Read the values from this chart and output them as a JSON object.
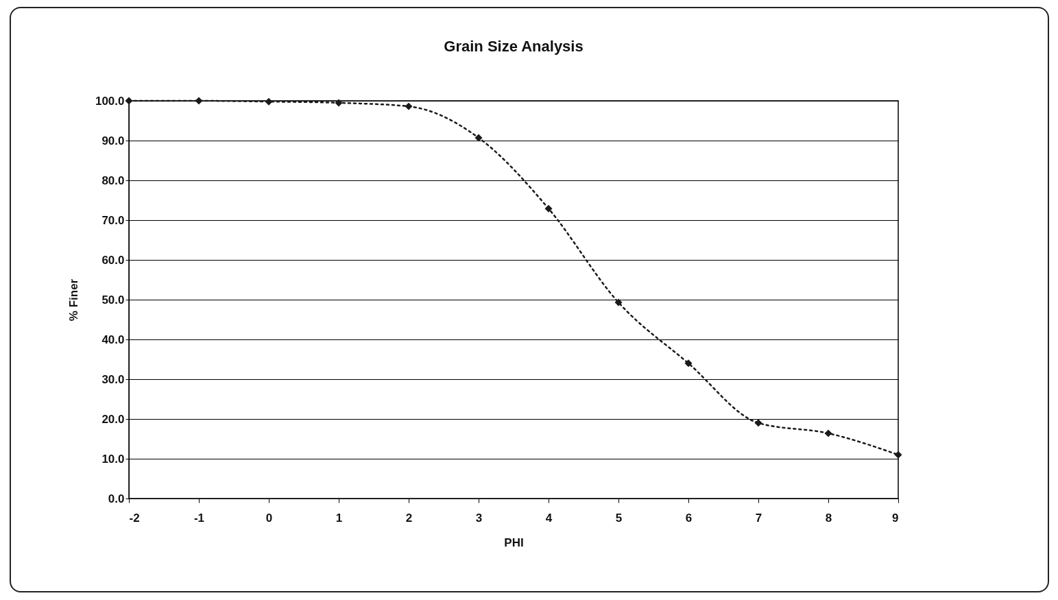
{
  "chart_data": {
    "type": "line",
    "title": "Grain Size Analysis",
    "xlabel": "PHI",
    "ylabel": "% Finer",
    "x": [
      -2,
      -1,
      0,
      1,
      2,
      3,
      4,
      5,
      6,
      7,
      8,
      9
    ],
    "series": [
      {
        "color": "#1a1a1a",
        "values": [
          100,
          100,
          99.8,
          99.5,
          98.6,
          90.7,
          72.9,
          49.3,
          34.0,
          19.0,
          16.4,
          11.0
        ]
      }
    ],
    "xlim": [
      -2,
      9
    ],
    "xticks": [
      -2,
      -1,
      0,
      1,
      2,
      3,
      4,
      5,
      6,
      7,
      8,
      9
    ],
    "ylim": [
      0,
      100
    ],
    "yticks": [
      {
        "value": 0,
        "label": "0.0"
      },
      {
        "value": 10,
        "label": "10.0"
      },
      {
        "value": 20,
        "label": "20.0"
      },
      {
        "value": 30,
        "label": "30.0"
      },
      {
        "value": 40,
        "label": "40.0"
      },
      {
        "value": 50,
        "label": "50.0"
      },
      {
        "value": 60,
        "label": "60.0"
      },
      {
        "value": 70,
        "label": "70.0"
      },
      {
        "value": 80,
        "label": "80.0"
      },
      {
        "value": 90,
        "label": "90.0"
      },
      {
        "value": 100,
        "label": "100.0"
      }
    ],
    "grid": "y",
    "legend": false,
    "marker": "diamond",
    "line_style": "dotted"
  }
}
